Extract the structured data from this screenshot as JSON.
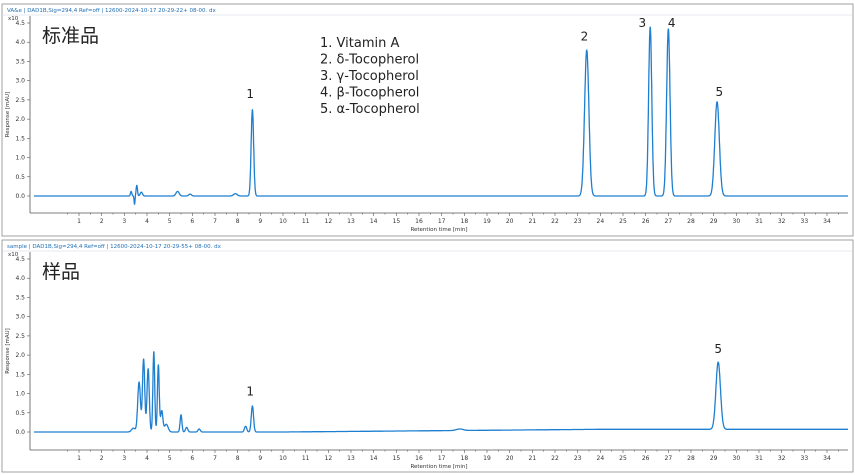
{
  "chart_data": [
    {
      "type": "line",
      "header": "VA&e  |  DAD1B,Sig=294,4    Ref=off  |  12600-2024-10-17  20-29-22+ 08-00. dx",
      "panel_label": "标准品",
      "xlabel": "Retention time [min]",
      "ylabel": "Response [mAU]",
      "y_multiplier_label": "x10",
      "xlim": [
        0,
        35
      ],
      "ylim": [
        -0.25,
        4.6
      ],
      "xticks": [
        "1",
        "2",
        "3",
        "4",
        "5",
        "6",
        "7",
        "8",
        "9",
        "10",
        "11",
        "12",
        "13",
        "14",
        "15",
        "16",
        "17",
        "18",
        "19",
        "20",
        "21",
        "22",
        "23",
        "24",
        "25",
        "26",
        "27",
        "28",
        "29",
        "30",
        "31",
        "32",
        "33",
        "34"
      ],
      "yticks": [
        "0.0",
        "0.5",
        "1.0",
        "1.5",
        "2.0",
        "2.5",
        "3.0",
        "3.5",
        "4.0",
        "4.5"
      ],
      "legend": [
        "1.   Vitamin A",
        "2.   δ-Tocopherol",
        "3.   γ-Tocopherol",
        "4.   β-Tocopherol",
        "5.   α-Tocopherol"
      ],
      "baseline": 0.0,
      "peaks": [
        {
          "t": 3.3,
          "h": 0.12,
          "w": 0.03
        },
        {
          "t": 3.45,
          "h": -0.22,
          "w": 0.02
        },
        {
          "t": 3.55,
          "h": 0.28,
          "w": 0.03
        },
        {
          "t": 3.75,
          "h": 0.1,
          "w": 0.05
        },
        {
          "t": 5.35,
          "h": 0.12,
          "w": 0.07
        },
        {
          "t": 5.9,
          "h": 0.05,
          "w": 0.06
        },
        {
          "t": 7.9,
          "h": 0.06,
          "w": 0.08
        },
        {
          "t": 8.65,
          "h": 2.25,
          "w": 0.055
        },
        {
          "t": 23.4,
          "h": 3.8,
          "w": 0.095
        },
        {
          "t": 26.2,
          "h": 4.4,
          "w": 0.07
        },
        {
          "t": 27.0,
          "h": 4.35,
          "w": 0.075
        },
        {
          "t": 29.15,
          "h": 2.45,
          "w": 0.1
        }
      ],
      "peak_labels": [
        {
          "text": "1",
          "t": 8.55,
          "y": 2.55
        },
        {
          "text": "2",
          "t": 23.3,
          "y": 4.05
        },
        {
          "text": "3",
          "t": 25.85,
          "y": 4.4
        },
        {
          "text": "4",
          "t": 27.15,
          "y": 4.4
        },
        {
          "text": "5",
          "t": 29.25,
          "y": 2.6
        }
      ]
    },
    {
      "type": "line",
      "header": "sample  |  DAD1B,Sig=294,4    Ref=off  |  12600-2024-10-17  20-29-55+ 08-00. dx",
      "panel_label": "样品",
      "xlabel": "Retention time [min]",
      "ylabel": "Response [mAU]",
      "y_multiplier_label": "x10",
      "xlim": [
        0,
        35
      ],
      "ylim": [
        -0.25,
        4.6
      ],
      "xticks": [
        "1",
        "2",
        "3",
        "4",
        "5",
        "6",
        "7",
        "8",
        "9",
        "10",
        "11",
        "12",
        "13",
        "14",
        "15",
        "16",
        "17",
        "18",
        "19",
        "20",
        "21",
        "22",
        "23",
        "24",
        "25",
        "26",
        "27",
        "28",
        "29",
        "30",
        "31",
        "32",
        "33",
        "34"
      ],
      "yticks": [
        "0.0",
        "0.5",
        "1.0",
        "1.5",
        "2.0",
        "2.5",
        "3.0",
        "3.5",
        "4.0",
        "4.5"
      ],
      "legend": [],
      "baseline": 0.0,
      "peaks": [
        {
          "t": 3.4,
          "h": 0.1,
          "w": 0.08
        },
        {
          "t": 3.65,
          "h": 1.3,
          "w": 0.06
        },
        {
          "t": 3.85,
          "h": 1.9,
          "w": 0.05
        },
        {
          "t": 4.05,
          "h": 1.65,
          "w": 0.05
        },
        {
          "t": 4.3,
          "h": 2.1,
          "w": 0.04
        },
        {
          "t": 4.5,
          "h": 1.75,
          "w": 0.04
        },
        {
          "t": 4.65,
          "h": 0.55,
          "w": 0.05
        },
        {
          "t": 4.85,
          "h": 0.2,
          "w": 0.08
        },
        {
          "t": 5.5,
          "h": 0.45,
          "w": 0.04
        },
        {
          "t": 5.75,
          "h": 0.12,
          "w": 0.05
        },
        {
          "t": 6.3,
          "h": 0.08,
          "w": 0.05
        },
        {
          "t": 8.35,
          "h": 0.15,
          "w": 0.05
        },
        {
          "t": 8.65,
          "h": 0.68,
          "w": 0.05
        },
        {
          "t": 17.8,
          "h": 0.04,
          "w": 0.15
        },
        {
          "t": 29.2,
          "h": 1.75,
          "w": 0.1
        }
      ],
      "drift": 0.07,
      "peak_labels": [
        {
          "text": "1",
          "t": 8.55,
          "y": 0.95
        },
        {
          "text": "5",
          "t": 29.2,
          "y": 2.05
        }
      ]
    }
  ]
}
